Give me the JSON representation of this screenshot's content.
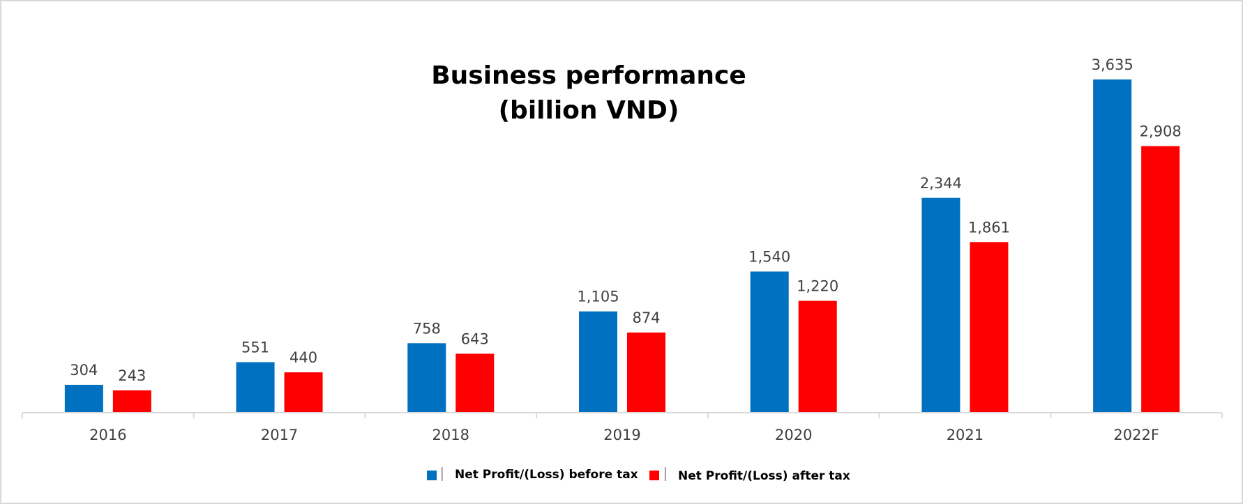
{
  "chart_data": {
    "type": "bar",
    "title": "Business performance",
    "subtitle": "(billion VND)",
    "categories": [
      "2016",
      "2017",
      "2018",
      "2019",
      "2020",
      "2021",
      "2022F"
    ],
    "series": [
      {
        "name": "Net Profit/(Loss) before tax",
        "color": "#0070C0",
        "values": [
          304,
          551,
          758,
          1105,
          1540,
          2344,
          3635
        ],
        "labels": [
          "304",
          "551",
          "758",
          "1,105",
          "1,540",
          "2,344",
          "3,635"
        ]
      },
      {
        "name": "Net Profit/(Loss) after tax",
        "color": "#FF0000",
        "values": [
          243,
          440,
          643,
          874,
          1220,
          1861,
          2908
        ],
        "labels": [
          "243",
          "440",
          "643",
          "874",
          "1,220",
          "1,861",
          "2,908"
        ]
      }
    ],
    "xlabel": "",
    "ylabel": "",
    "ylim": [
      0,
      4000
    ],
    "grid": false,
    "legend": "bottom"
  }
}
